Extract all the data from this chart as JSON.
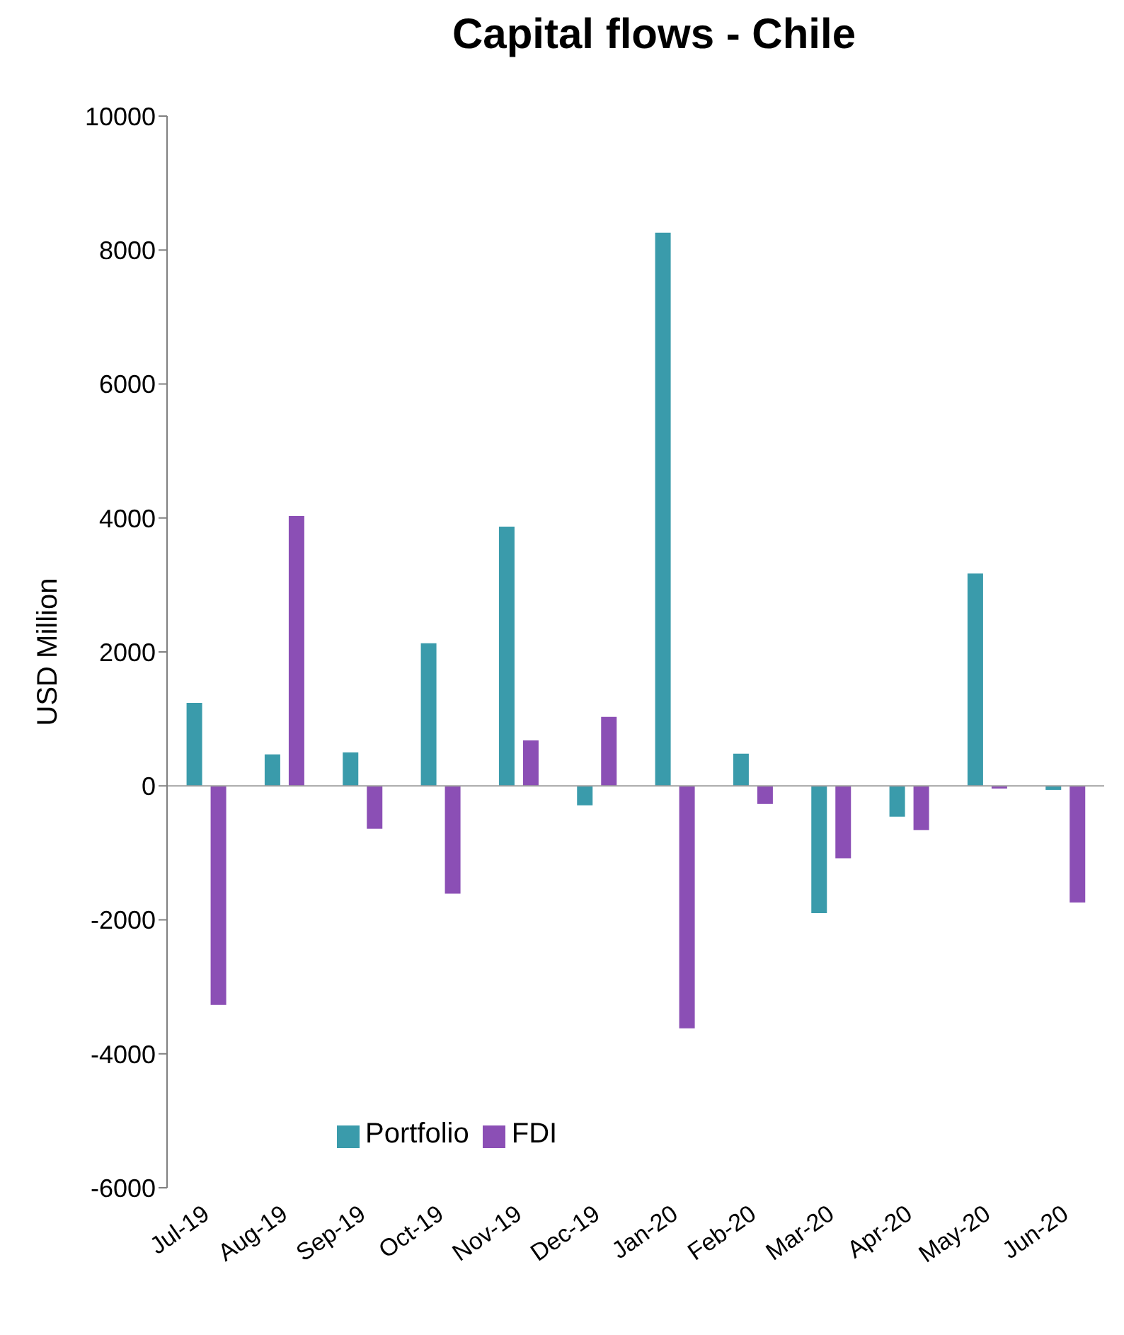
{
  "chart_data": {
    "type": "bar",
    "title": "Capital flows - Chile",
    "ylabel": "USD Million",
    "categories": [
      "Jul-19",
      "Aug-19",
      "Sep-19",
      "Oct-19",
      "Nov-19",
      "Dec-19",
      "Jan-20",
      "Feb-20",
      "Mar-20",
      "Apr-20",
      "May-20",
      "Jun-20"
    ],
    "series": [
      {
        "name": "Portfolio",
        "color": "#3a9bab",
        "values": [
          1240,
          470,
          500,
          2130,
          3870,
          -290,
          8260,
          480,
          -1900,
          -460,
          3170,
          -60
        ]
      },
      {
        "name": "FDI",
        "color": "#8b4fb5",
        "values": [
          -3270,
          4030,
          -640,
          -1610,
          680,
          1030,
          -3620,
          -270,
          -1080,
          -660,
          -40,
          -1740
        ]
      }
    ],
    "ylim": [
      -6000,
      10000
    ],
    "yticks": [
      -6000,
      -4000,
      -2000,
      0,
      2000,
      4000,
      6000,
      8000,
      10000
    ],
    "legend": "bottom left"
  }
}
